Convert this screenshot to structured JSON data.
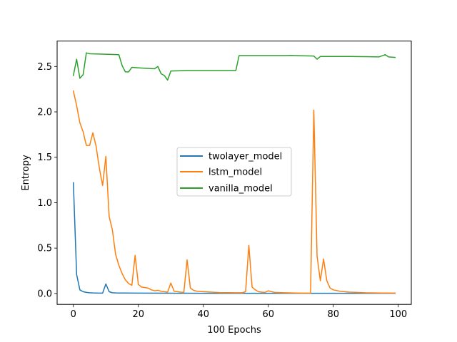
{
  "chart_data": {
    "type": "line",
    "title": "",
    "xlabel": "100 Epochs",
    "ylabel": "Entropy",
    "xlim": [
      -5,
      104
    ],
    "ylim": [
      -0.12,
      2.78
    ],
    "xticks": [
      0,
      20,
      40,
      60,
      80,
      100
    ],
    "yticks": [
      0.0,
      0.5,
      1.0,
      1.5,
      2.0,
      2.5
    ],
    "ytick_labels": [
      "0.0",
      "0.5",
      "1.0",
      "1.5",
      "2.0",
      "2.5"
    ],
    "grid": false,
    "legend_position": "center",
    "series": [
      {
        "name": "twolayer_model",
        "color": "#1f77b4",
        "x": [
          0,
          1,
          2,
          3,
          4,
          5,
          6,
          7,
          8,
          9,
          10,
          11,
          12,
          13,
          14,
          15,
          20,
          30,
          40,
          50,
          60,
          70,
          80,
          90,
          99
        ],
        "y": [
          1.22,
          0.21,
          0.04,
          0.02,
          0.012,
          0.008,
          0.006,
          0.005,
          0.004,
          0.004,
          0.105,
          0.02,
          0.008,
          0.006,
          0.005,
          0.005,
          0.004,
          0.003,
          0.002,
          0.002,
          0.002,
          0.002,
          0.002,
          0.002,
          0.002
        ]
      },
      {
        "name": "lstm_model",
        "color": "#ff7f0e",
        "x": [
          0,
          1,
          2,
          3,
          4,
          5,
          6,
          7,
          8,
          9,
          10,
          11,
          12,
          13,
          14,
          15,
          16,
          17,
          18,
          19,
          20,
          21,
          22,
          23,
          24,
          25,
          26,
          27,
          28,
          29,
          30,
          31,
          32,
          33,
          34,
          35,
          36,
          37,
          38,
          40,
          45,
          50,
          52,
          53,
          54,
          55,
          56,
          57,
          58,
          59,
          60,
          61,
          62,
          65,
          70,
          73,
          74,
          75,
          76,
          77,
          78,
          79,
          80,
          82,
          85,
          90,
          95,
          99
        ],
        "y": [
          2.23,
          2.07,
          1.88,
          1.78,
          1.63,
          1.63,
          1.77,
          1.62,
          1.38,
          1.19,
          1.51,
          0.85,
          0.7,
          0.43,
          0.31,
          0.22,
          0.15,
          0.11,
          0.09,
          0.42,
          0.1,
          0.07,
          0.065,
          0.06,
          0.04,
          0.03,
          0.035,
          0.025,
          0.02,
          0.015,
          0.115,
          0.025,
          0.02,
          0.015,
          0.012,
          0.37,
          0.06,
          0.035,
          0.025,
          0.02,
          0.01,
          0.008,
          0.008,
          0.02,
          0.53,
          0.07,
          0.04,
          0.02,
          0.015,
          0.012,
          0.03,
          0.02,
          0.012,
          0.008,
          0.004,
          0.003,
          2.02,
          0.41,
          0.14,
          0.38,
          0.14,
          0.06,
          0.04,
          0.025,
          0.015,
          0.008,
          0.005,
          0.004
        ]
      },
      {
        "name": "vanilla_model",
        "color": "#2ca02c",
        "x": [
          0,
          1,
          2,
          3,
          4,
          5,
          10,
          14,
          15,
          16,
          17,
          18,
          20,
          25,
          26,
          27,
          28,
          29,
          30,
          35,
          40,
          45,
          50,
          51,
          55,
          60,
          65,
          67,
          70,
          74,
          75,
          76,
          80,
          85,
          90,
          94,
          96,
          97,
          99
        ],
        "y": [
          2.4,
          2.58,
          2.37,
          2.41,
          2.65,
          2.64,
          2.635,
          2.63,
          2.51,
          2.44,
          2.44,
          2.49,
          2.485,
          2.475,
          2.5,
          2.42,
          2.4,
          2.35,
          2.45,
          2.455,
          2.455,
          2.455,
          2.455,
          2.62,
          2.62,
          2.62,
          2.62,
          2.622,
          2.618,
          2.615,
          2.58,
          2.61,
          2.61,
          2.61,
          2.608,
          2.605,
          2.63,
          2.605,
          2.6
        ]
      }
    ]
  }
}
